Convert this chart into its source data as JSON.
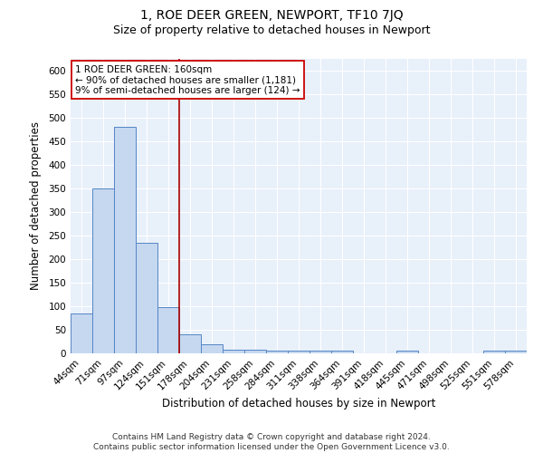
{
  "title": "1, ROE DEER GREEN, NEWPORT, TF10 7JQ",
  "subtitle": "Size of property relative to detached houses in Newport",
  "xlabel": "Distribution of detached houses by size in Newport",
  "ylabel": "Number of detached properties",
  "categories": [
    "44sqm",
    "71sqm",
    "97sqm",
    "124sqm",
    "151sqm",
    "178sqm",
    "204sqm",
    "231sqm",
    "258sqm",
    "284sqm",
    "311sqm",
    "338sqm",
    "364sqm",
    "391sqm",
    "418sqm",
    "445sqm",
    "471sqm",
    "498sqm",
    "525sqm",
    "551sqm",
    "578sqm"
  ],
  "values": [
    85,
    350,
    480,
    235,
    98,
    40,
    20,
    8,
    8,
    5,
    5,
    5,
    5,
    0,
    0,
    5,
    0,
    0,
    0,
    5,
    5
  ],
  "bar_color": "#c5d8f0",
  "bar_edge_color": "#5585c5",
  "background_color": "#e8f0fa",
  "annotation_box_color": "#ffffff",
  "annotation_border_color": "#cc0000",
  "vline_color": "#aa0000",
  "vline_x": 4.5,
  "annotation_text_line1": "1 ROE DEER GREEN: 160sqm",
  "annotation_text_line2": "← 90% of detached houses are smaller (1,181)",
  "annotation_text_line3": "9% of semi-detached houses are larger (124) →",
  "annotation_fontsize": 7.5,
  "title_fontsize": 10,
  "subtitle_fontsize": 9,
  "axis_label_fontsize": 8.5,
  "tick_fontsize": 7.5,
  "footer_text": "Contains HM Land Registry data © Crown copyright and database right 2024.\nContains public sector information licensed under the Open Government Licence v3.0.",
  "footer_fontsize": 6.5,
  "ylim": [
    0,
    625
  ],
  "yticks": [
    0,
    50,
    100,
    150,
    200,
    250,
    300,
    350,
    400,
    450,
    500,
    550,
    600
  ]
}
